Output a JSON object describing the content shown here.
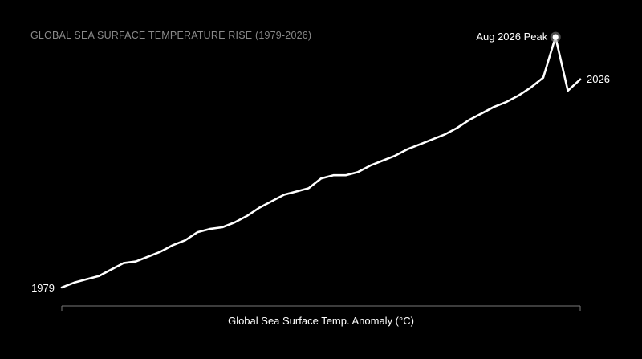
{
  "colors": {
    "background": "#000000",
    "line": "#ffffff",
    "title": "#8a8a8a",
    "axis": "#777777"
  },
  "chart_data": {
    "type": "line",
    "title": "GLOBAL SEA SURFACE TEMPERATURE RISE (1979-2026)",
    "xlabel": "Global Sea Surface Temp. Anomaly (°C)",
    "ylabel": "",
    "grid": false,
    "legend": "none",
    "start_label": "1979",
    "end_label": "2026",
    "peak_label": "Aug 2026 Peak",
    "series": [
      {
        "values": [
          -0.1,
          -0.07,
          -0.05,
          -0.03,
          0.01,
          0.05,
          0.06,
          0.09,
          0.12,
          0.16,
          0.19,
          0.24,
          0.26,
          0.27,
          0.3,
          0.34,
          0.39,
          0.43,
          0.47,
          0.49,
          0.51,
          0.57,
          0.59,
          0.59,
          0.61,
          0.65,
          0.68,
          0.71,
          0.75,
          0.78,
          0.81,
          0.84,
          0.88,
          0.93,
          0.97,
          1.01,
          1.04,
          1.08,
          1.13,
          1.19,
          1.44,
          1.11,
          1.18
        ]
      }
    ],
    "ylim": [
      -0.12,
      1.48
    ]
  }
}
